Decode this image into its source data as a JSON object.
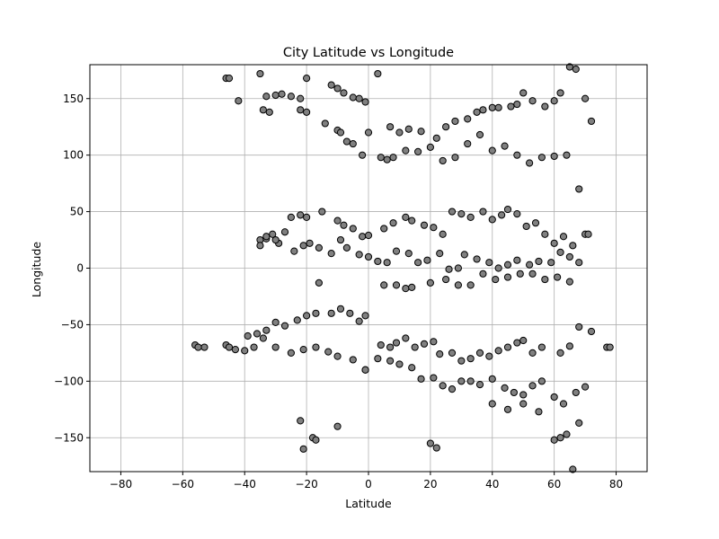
{
  "chart_data": {
    "type": "scatter",
    "title": "City Latitude vs Longitude",
    "xlabel": "Latitude",
    "ylabel": "Longitude",
    "xlim": [
      -90,
      90
    ],
    "ylim": [
      -180,
      180
    ],
    "xticks": [
      -80,
      -60,
      -40,
      -20,
      0,
      20,
      40,
      60,
      80
    ],
    "yticks": [
      -150,
      -100,
      -50,
      0,
      50,
      100,
      150
    ],
    "grid": true,
    "marker_color": "#808080",
    "edge_color": "#000000",
    "x": [
      -46,
      -45,
      -35,
      -33,
      -30,
      -28,
      -25,
      -22,
      -20,
      -12,
      -10,
      -8,
      -5,
      -3,
      -1,
      3,
      7,
      10,
      13,
      17,
      22,
      25,
      28,
      32,
      35,
      37,
      40,
      42,
      46,
      48,
      50,
      53,
      57,
      60,
      62,
      65,
      67,
      70,
      -42,
      -34,
      -32,
      -22,
      -20,
      -14,
      -10,
      -9,
      -7,
      -5,
      -2,
      0,
      4,
      6,
      8,
      12,
      16,
      20,
      24,
      28,
      32,
      36,
      40,
      44,
      48,
      52,
      56,
      60,
      64,
      68,
      72,
      -35,
      -33,
      -31,
      -29,
      -25,
      -22,
      -20,
      -15,
      -10,
      -8,
      -5,
      -2,
      0,
      5,
      8,
      12,
      14,
      18,
      21,
      24,
      27,
      30,
      33,
      37,
      40,
      43,
      45,
      48,
      51,
      54,
      57,
      60,
      63,
      66,
      70,
      -35,
      -33,
      -30,
      -27,
      -24,
      -21,
      -19,
      -16,
      -12,
      -9,
      -7,
      -3,
      0,
      3,
      6,
      9,
      13,
      16,
      19,
      23,
      26,
      29,
      31,
      35,
      39,
      42,
      45,
      48,
      52,
      55,
      59,
      62,
      65,
      68,
      71,
      -56,
      -53,
      -46,
      -43,
      -39,
      -36,
      -33,
      -30,
      -27,
      -23,
      -20,
      -17,
      -12,
      -9,
      -6,
      -3,
      -1,
      4,
      7,
      9,
      12,
      15,
      18,
      21,
      23,
      27,
      30,
      33,
      36,
      39,
      42,
      45,
      48,
      50,
      53,
      56,
      62,
      65,
      68,
      72,
      -55,
      -45,
      -40,
      -37,
      -34,
      -30,
      -25,
      -21,
      -17,
      -13,
      -10,
      -5,
      -1,
      3,
      7,
      10,
      14,
      17,
      21,
      24,
      27,
      30,
      33,
      36,
      40,
      44,
      47,
      50,
      53,
      56,
      60,
      63,
      67,
      70,
      77,
      -22,
      -21,
      -18,
      -17,
      -10,
      20,
      22,
      40,
      45,
      50,
      55,
      60,
      62,
      64,
      66,
      68,
      -16,
      -1,
      5,
      9,
      12,
      14,
      20,
      25,
      29,
      33,
      37,
      41,
      45,
      49,
      53,
      57,
      61,
      65,
      78
    ],
    "y": [
      168,
      168,
      172,
      152,
      153,
      154,
      152,
      150,
      168,
      162,
      159,
      155,
      151,
      150,
      147,
      172,
      125,
      120,
      123,
      121,
      115,
      125,
      130,
      132,
      138,
      140,
      142,
      142,
      143,
      145,
      155,
      148,
      143,
      148,
      155,
      178,
      176,
      150,
      148,
      140,
      138,
      140,
      138,
      128,
      122,
      120,
      112,
      110,
      100,
      120,
      98,
      96,
      98,
      104,
      103,
      107,
      95,
      98,
      110,
      118,
      104,
      108,
      100,
      93,
      98,
      99,
      100,
      70,
      130,
      25,
      26,
      30,
      22,
      45,
      47,
      45,
      50,
      42,
      38,
      35,
      28,
      29,
      35,
      40,
      45,
      42,
      38,
      36,
      30,
      50,
      48,
      45,
      50,
      43,
      47,
      52,
      48,
      37,
      40,
      30,
      22,
      28,
      20,
      30,
      20,
      28,
      25,
      32,
      15,
      20,
      22,
      18,
      13,
      25,
      18,
      12,
      10,
      6,
      5,
      15,
      13,
      5,
      7,
      13,
      -1,
      0,
      12,
      8,
      5,
      0,
      3,
      7,
      3,
      6,
      5,
      14,
      10,
      5,
      30,
      -68,
      -70,
      -68,
      -72,
      -60,
      -58,
      -55,
      -48,
      -51,
      -46,
      -42,
      -40,
      -40,
      -36,
      -40,
      -47,
      -42,
      -68,
      -70,
      -66,
      -62,
      -70,
      -67,
      -65,
      -76,
      -75,
      -82,
      -80,
      -75,
      -78,
      -73,
      -70,
      -66,
      -64,
      -75,
      -70,
      -75,
      -69,
      -52,
      -56,
      -70,
      -70,
      -73,
      -70,
      -62,
      -70,
      -75,
      -72,
      -70,
      -74,
      -78,
      -81,
      -90,
      -80,
      -82,
      -85,
      -88,
      -98,
      -97,
      -104,
      -107,
      -100,
      -100,
      -103,
      -98,
      -106,
      -110,
      -112,
      -104,
      -100,
      -114,
      -120,
      -110,
      -105,
      -70,
      -135,
      -160,
      -150,
      -152,
      -140,
      -155,
      -159,
      -120,
      -125,
      -120,
      -127,
      -152,
      -150,
      -147,
      -178,
      -137,
      -13,
      -90,
      -15,
      -15,
      -18,
      -17,
      -13,
      -10,
      -15,
      -15,
      -5,
      -10,
      -8,
      -5,
      -5,
      -10,
      -8,
      -12,
      -70
    ]
  }
}
